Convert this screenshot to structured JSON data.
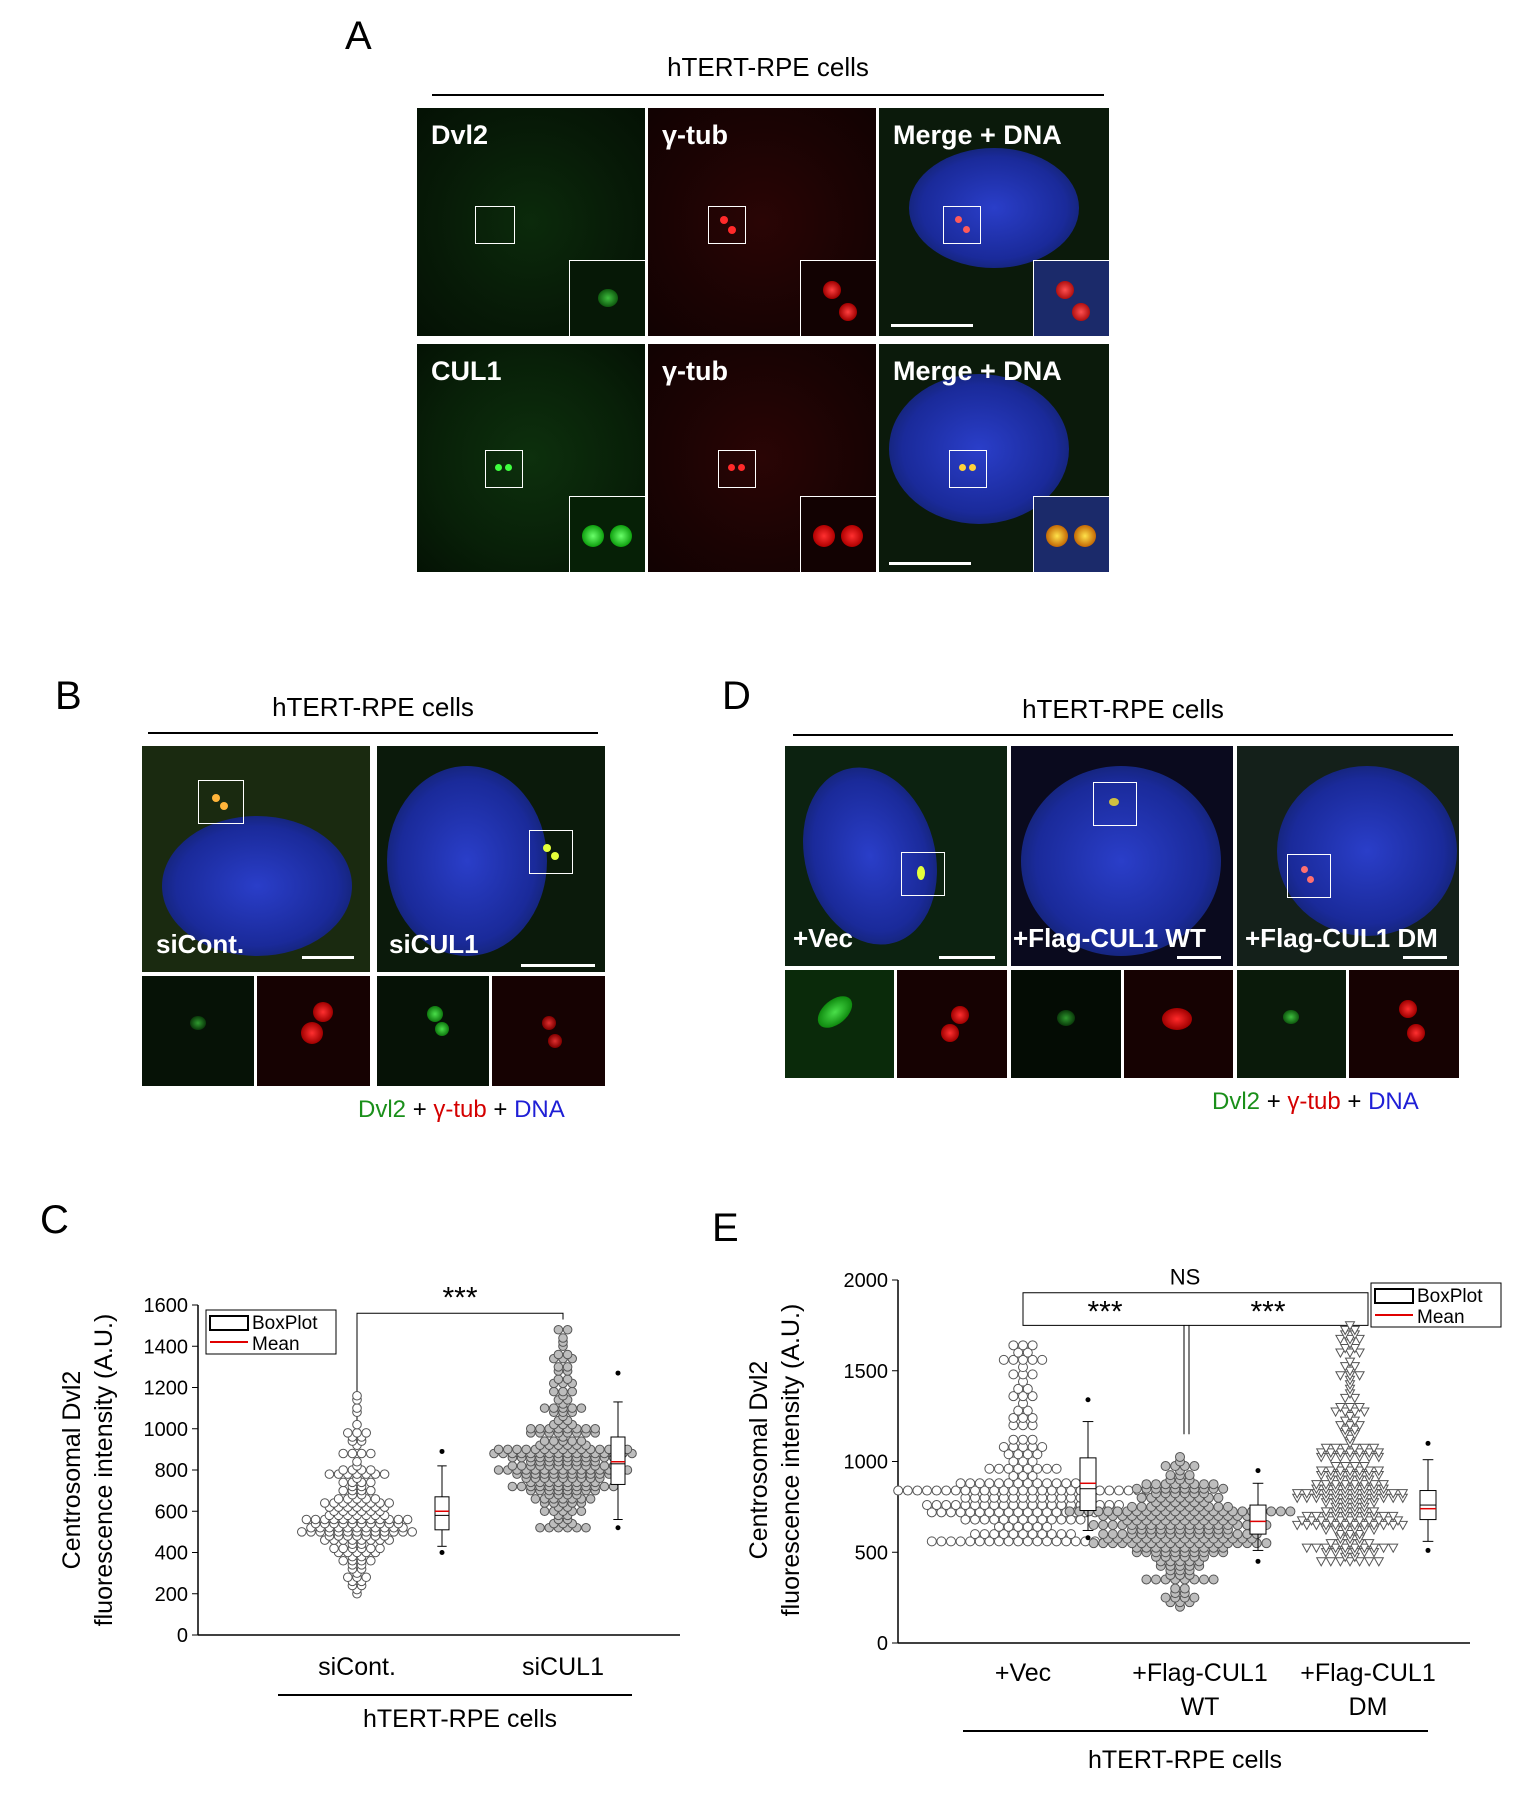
{
  "panels": {
    "A": {
      "letter": "A",
      "header": "hTERT-RPE cells",
      "row1": [
        "Dvl2",
        "γ-tub",
        "Merge + DNA"
      ],
      "row2": [
        "CUL1",
        "γ-tub",
        "Merge + DNA"
      ]
    },
    "B": {
      "letter": "B",
      "header": "hTERT-RPE cells",
      "labels": [
        "siCont.",
        "siCUL1"
      ]
    },
    "D": {
      "letter": "D",
      "header": "hTERT-RPE cells",
      "labels": [
        "+Vec",
        "+Flag-CUL1 WT",
        "+Flag-CUL1 DM"
      ]
    },
    "legend": {
      "dvl2": "Dvl2",
      "plus": "+",
      "gtub": "γ-tub",
      "dna": "DNA"
    },
    "C": {
      "letter": "C"
    },
    "E": {
      "letter": "E"
    }
  },
  "colors": {
    "green": "#1a8f1a",
    "red": "#d40000",
    "blue": "#1f1fd6",
    "mean": "#e00000"
  },
  "chart_data": [
    {
      "type": "scatter",
      "panel": "C",
      "categories": [
        "siCont.",
        "siCUL1"
      ],
      "ylabel": "Centrosomal Dvl2\nfluorescence intensity (A.U.)",
      "xgroup_label": "hTERT-RPE cells",
      "ylim": [
        0,
        1600
      ],
      "yticks": [
        0,
        200,
        400,
        600,
        800,
        1000,
        1200,
        1400,
        1600
      ],
      "legend": [
        "BoxPlot",
        "Mean"
      ],
      "significance": "***",
      "box": [
        {
          "min": 430,
          "q1": 510,
          "median": 580,
          "q3": 670,
          "max": 820,
          "mean": 600,
          "outliers": [
            400,
            890
          ]
        },
        {
          "min": 560,
          "q1": 730,
          "median": 830,
          "q3": 960,
          "max": 1130,
          "mean": 840,
          "outliers": [
            520,
            1270
          ]
        }
      ],
      "range": [
        [
          190,
          1170
        ],
        [
          510,
          1480
        ]
      ]
    },
    {
      "type": "scatter",
      "panel": "E",
      "categories": [
        "+Vec",
        "+Flag-CUL1\nWT",
        "+Flag-CUL1\nDM"
      ],
      "ylabel": "Centrosomal Dvl2\nfluorescence intensity (A.U.)",
      "xgroup_label": "hTERT-RPE cells",
      "ylim": [
        0,
        2000
      ],
      "yticks": [
        0,
        500,
        1000,
        1500,
        2000
      ],
      "legend": [
        "BoxPlot",
        "Mean"
      ],
      "significance": [
        "***",
        "***"
      ],
      "ns_label": "NS",
      "box": [
        {
          "min": 620,
          "q1": 730,
          "median": 850,
          "q3": 1020,
          "max": 1220,
          "mean": 880,
          "outliers": [
            580,
            1340
          ]
        },
        {
          "min": 510,
          "q1": 600,
          "median": 670,
          "q3": 760,
          "max": 880,
          "mean": 670,
          "outliers": [
            450,
            950
          ]
        },
        {
          "min": 560,
          "q1": 680,
          "median": 760,
          "q3": 840,
          "max": 1010,
          "mean": 740,
          "outliers": [
            510,
            1100
          ]
        }
      ],
      "range": [
        [
          570,
          1630
        ],
        [
          200,
          1070
        ],
        [
          460,
          1770
        ]
      ]
    }
  ]
}
